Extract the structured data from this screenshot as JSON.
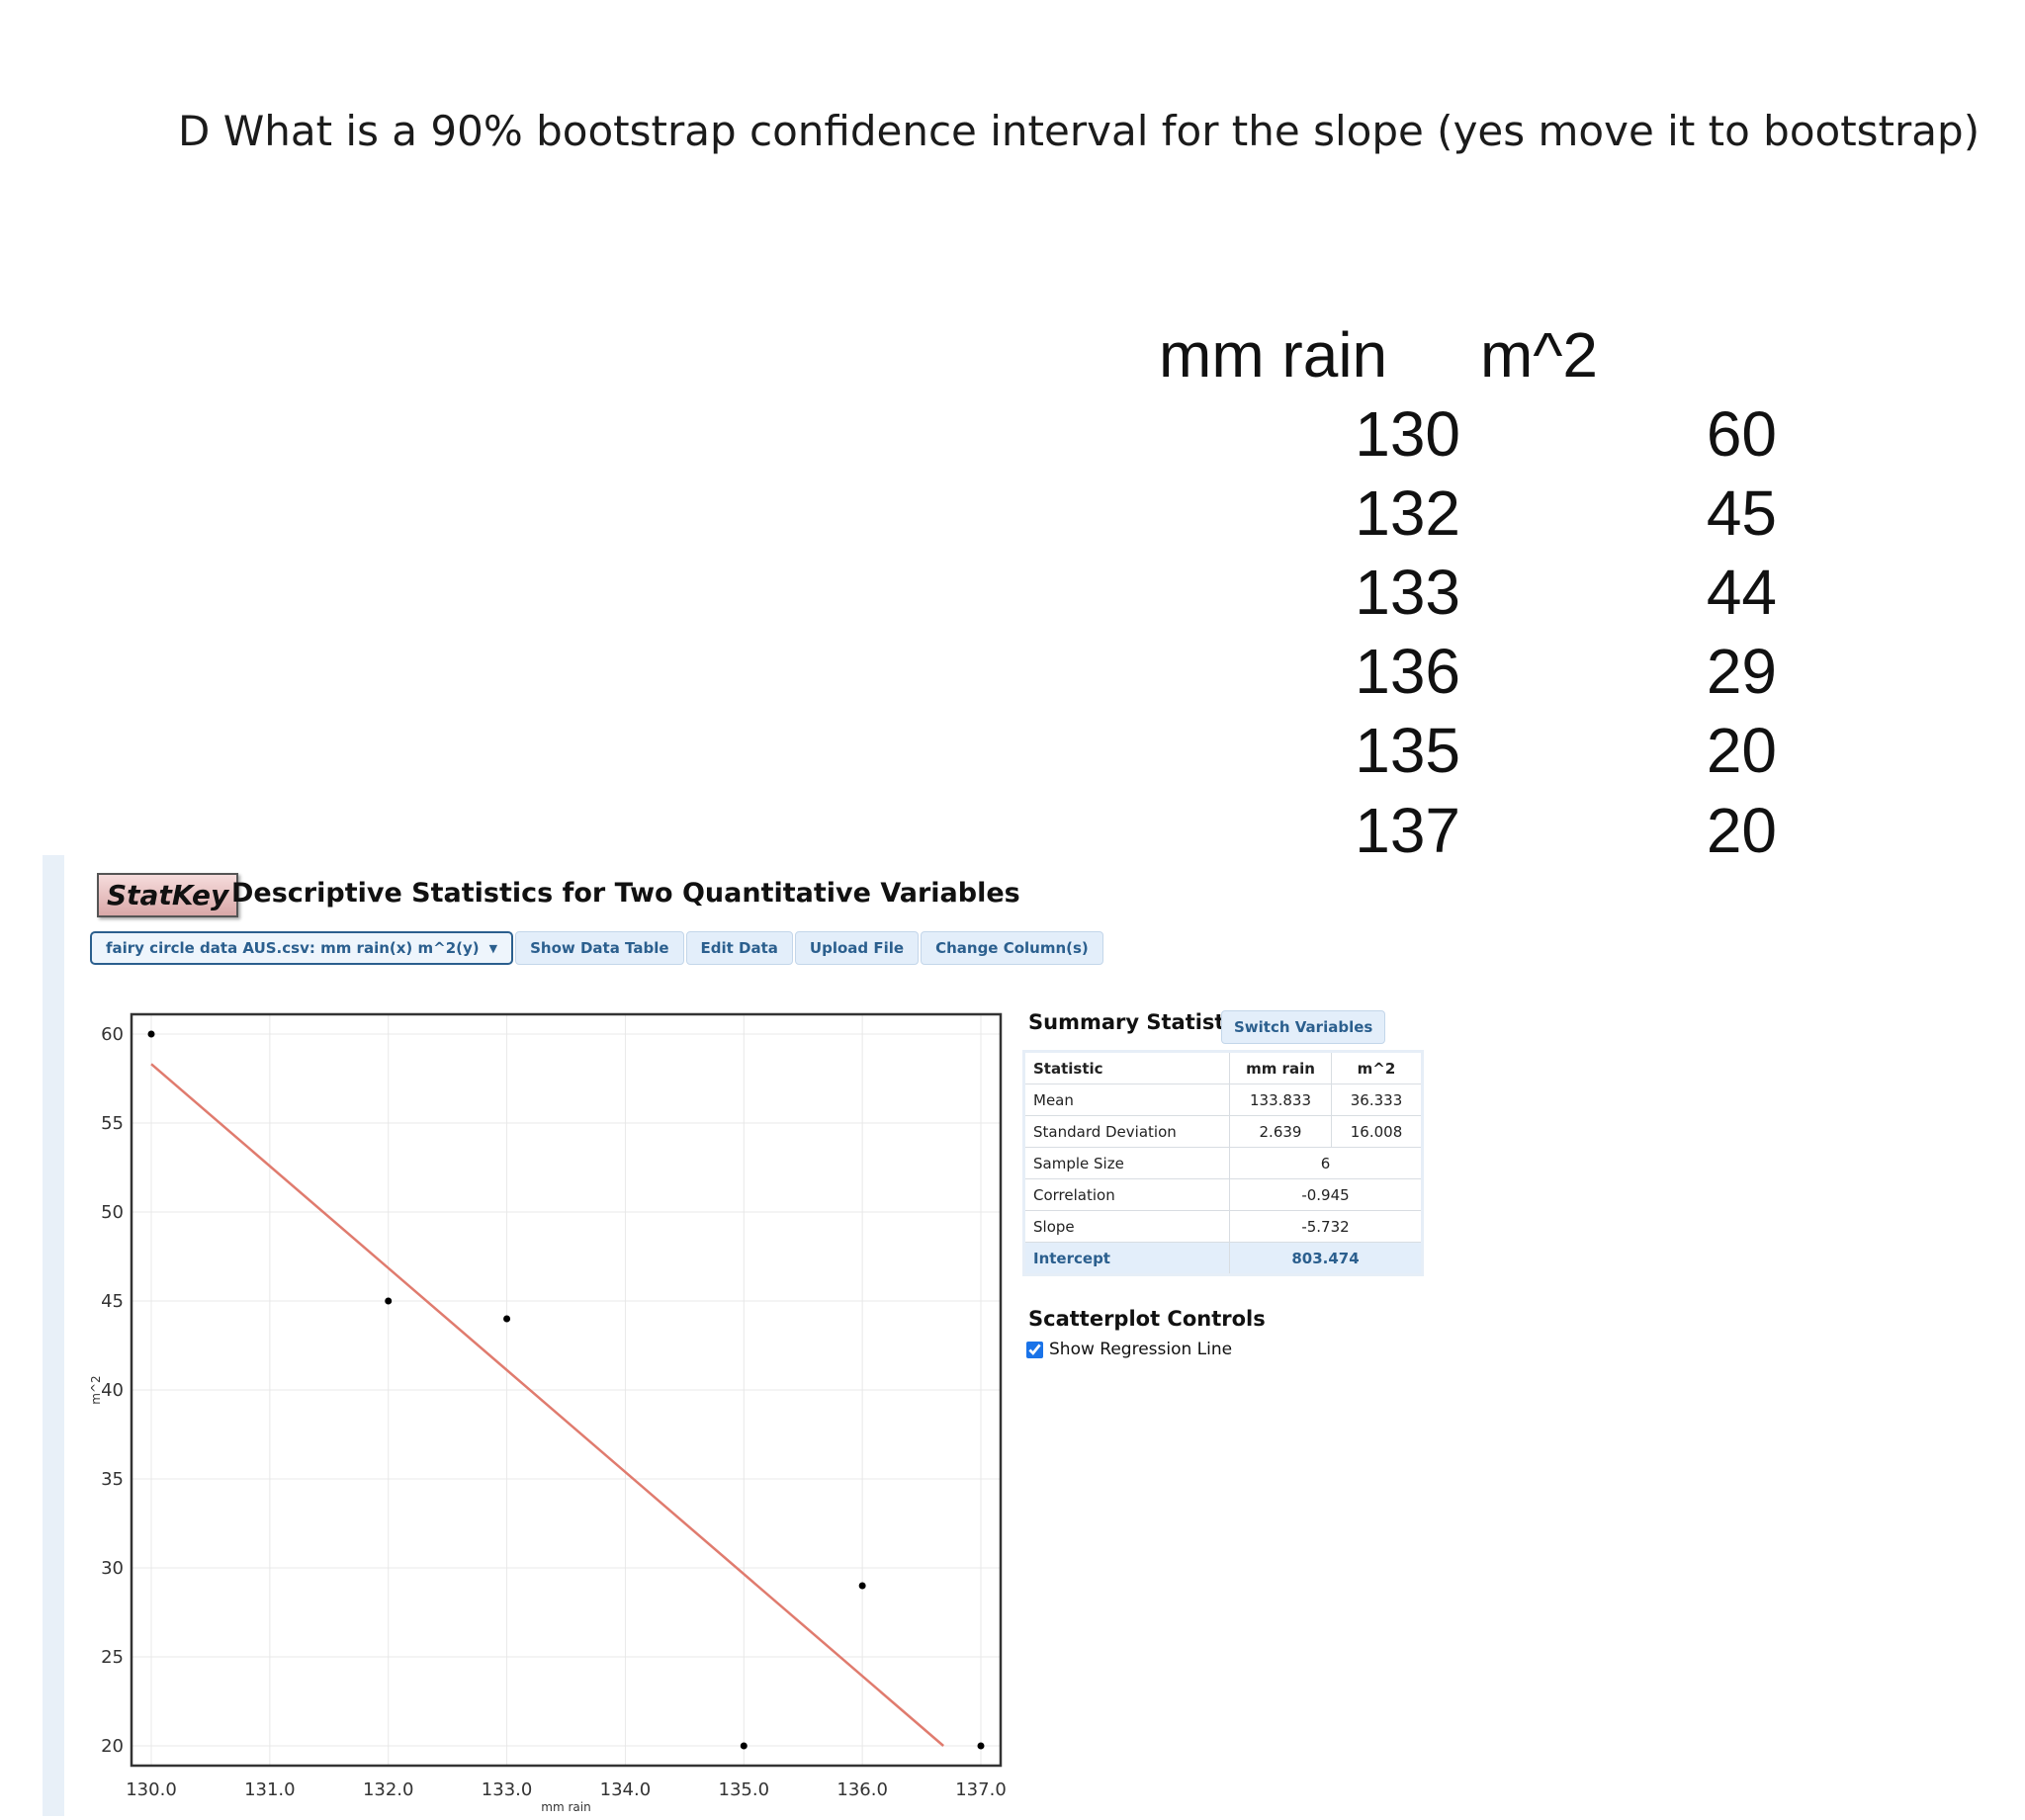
{
  "question": "D What is a 90% bootstrap confidence interval for the slope (yes move it to bootstrap)",
  "data_table": {
    "headers": [
      "mm rain",
      "m^2"
    ],
    "rows": [
      [
        "130",
        "60"
      ],
      [
        "132",
        "45"
      ],
      [
        "133",
        "44"
      ],
      [
        "136",
        "29"
      ],
      [
        "135",
        "20"
      ],
      [
        "137",
        "20"
      ]
    ]
  },
  "statkey": {
    "logo": "StatKey",
    "title": "Descriptive Statistics for Two Quantitative Variables",
    "dataset_select": "fairy circle data AUS.csv: mm rain(x) m^2(y)",
    "buttons": {
      "show_data_table": "Show Data Table",
      "edit_data": "Edit Data",
      "upload_file": "Upload File",
      "change_columns": "Change Column(s)"
    },
    "summary": {
      "title": "Summary Statistics",
      "switch_label": "Switch Variables",
      "headers": [
        "Statistic",
        "mm rain",
        "m^2"
      ],
      "rows": [
        {
          "label": "Mean",
          "x": "133.833",
          "y": "36.333"
        },
        {
          "label": "Standard Deviation",
          "x": "2.639",
          "y": "16.008"
        },
        {
          "label": "Sample Size",
          "value": "6"
        },
        {
          "label": "Correlation",
          "value": "-0.945"
        },
        {
          "label": "Slope",
          "value": "-5.732"
        },
        {
          "label": "Intercept",
          "value": "803.474"
        }
      ]
    },
    "controls": {
      "title": "Scatterplot Controls",
      "show_regression_line_label": "Show Regression Line",
      "show_regression_line": true
    }
  },
  "chart_data": {
    "type": "scatter",
    "x": [
      130,
      132,
      133,
      136,
      135,
      137
    ],
    "y": [
      60,
      45,
      44,
      29,
      20,
      20
    ],
    "xlabel": "mm rain",
    "ylabel": "m^2",
    "xlim": [
      130,
      137
    ],
    "ylim": [
      20,
      60
    ],
    "x_ticks": [
      "130.0",
      "131.0",
      "132.0",
      "133.0",
      "134.0",
      "135.0",
      "136.0",
      "137.0"
    ],
    "y_ticks": [
      "20",
      "25",
      "30",
      "35",
      "40",
      "45",
      "50",
      "55",
      "60"
    ],
    "regression": {
      "slope": -5.732,
      "intercept": 803.474
    },
    "grid": true,
    "colors": {
      "points": "#000000",
      "line": "#e07b6e",
      "grid": "#e8e8e8"
    }
  }
}
